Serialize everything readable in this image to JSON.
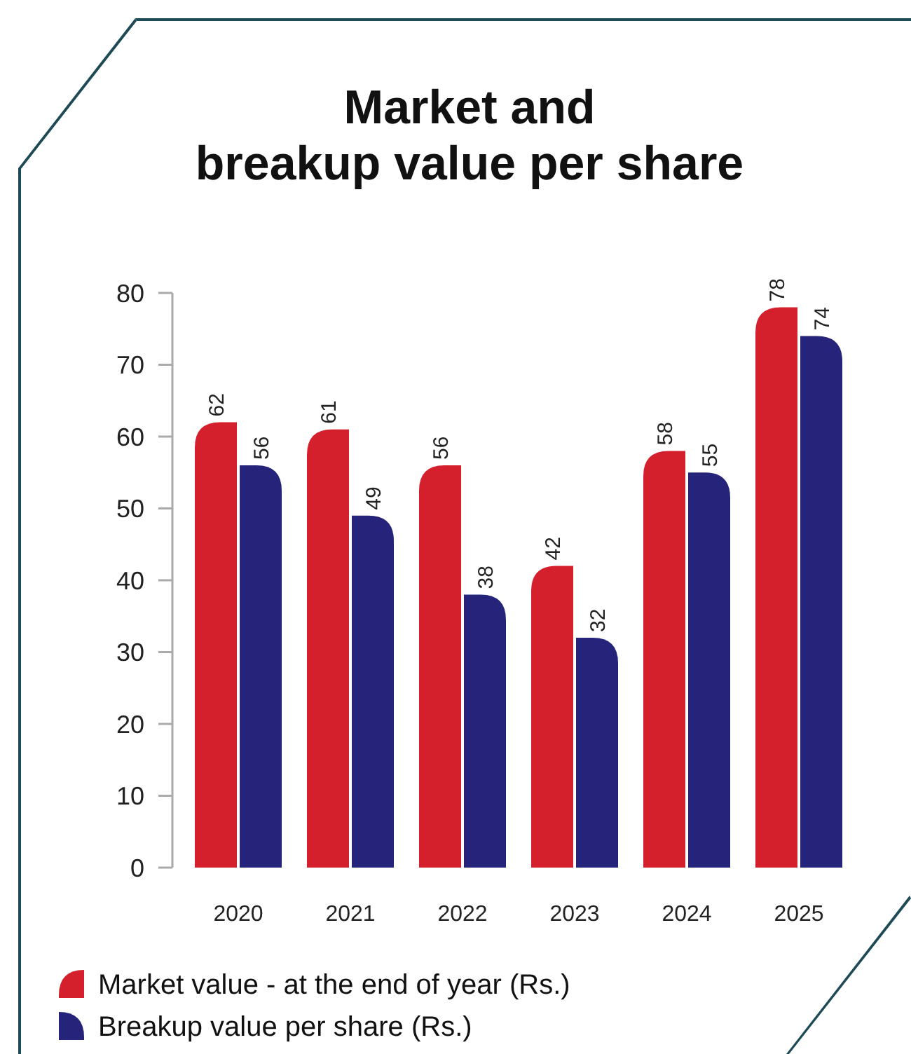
{
  "chart_data": {
    "type": "bar",
    "title": "Market and breakup value per share",
    "categories": [
      "2020",
      "2021",
      "2022",
      "2023",
      "2024",
      "2025"
    ],
    "series": [
      {
        "name": "Market value - at the end of year (Rs.)",
        "color": "#d4202c",
        "values": [
          62,
          61,
          56,
          42,
          58,
          78
        ]
      },
      {
        "name": "Breakup value per share (Rs.)",
        "color": "#25247a",
        "values": [
          56,
          49,
          38,
          32,
          55,
          74
        ]
      }
    ],
    "ylim": [
      0,
      80
    ],
    "yticks": [
      0,
      10,
      20,
      30,
      40,
      50,
      60,
      70,
      80
    ],
    "data_labels": true,
    "legend": "bottom",
    "grid": false
  }
}
